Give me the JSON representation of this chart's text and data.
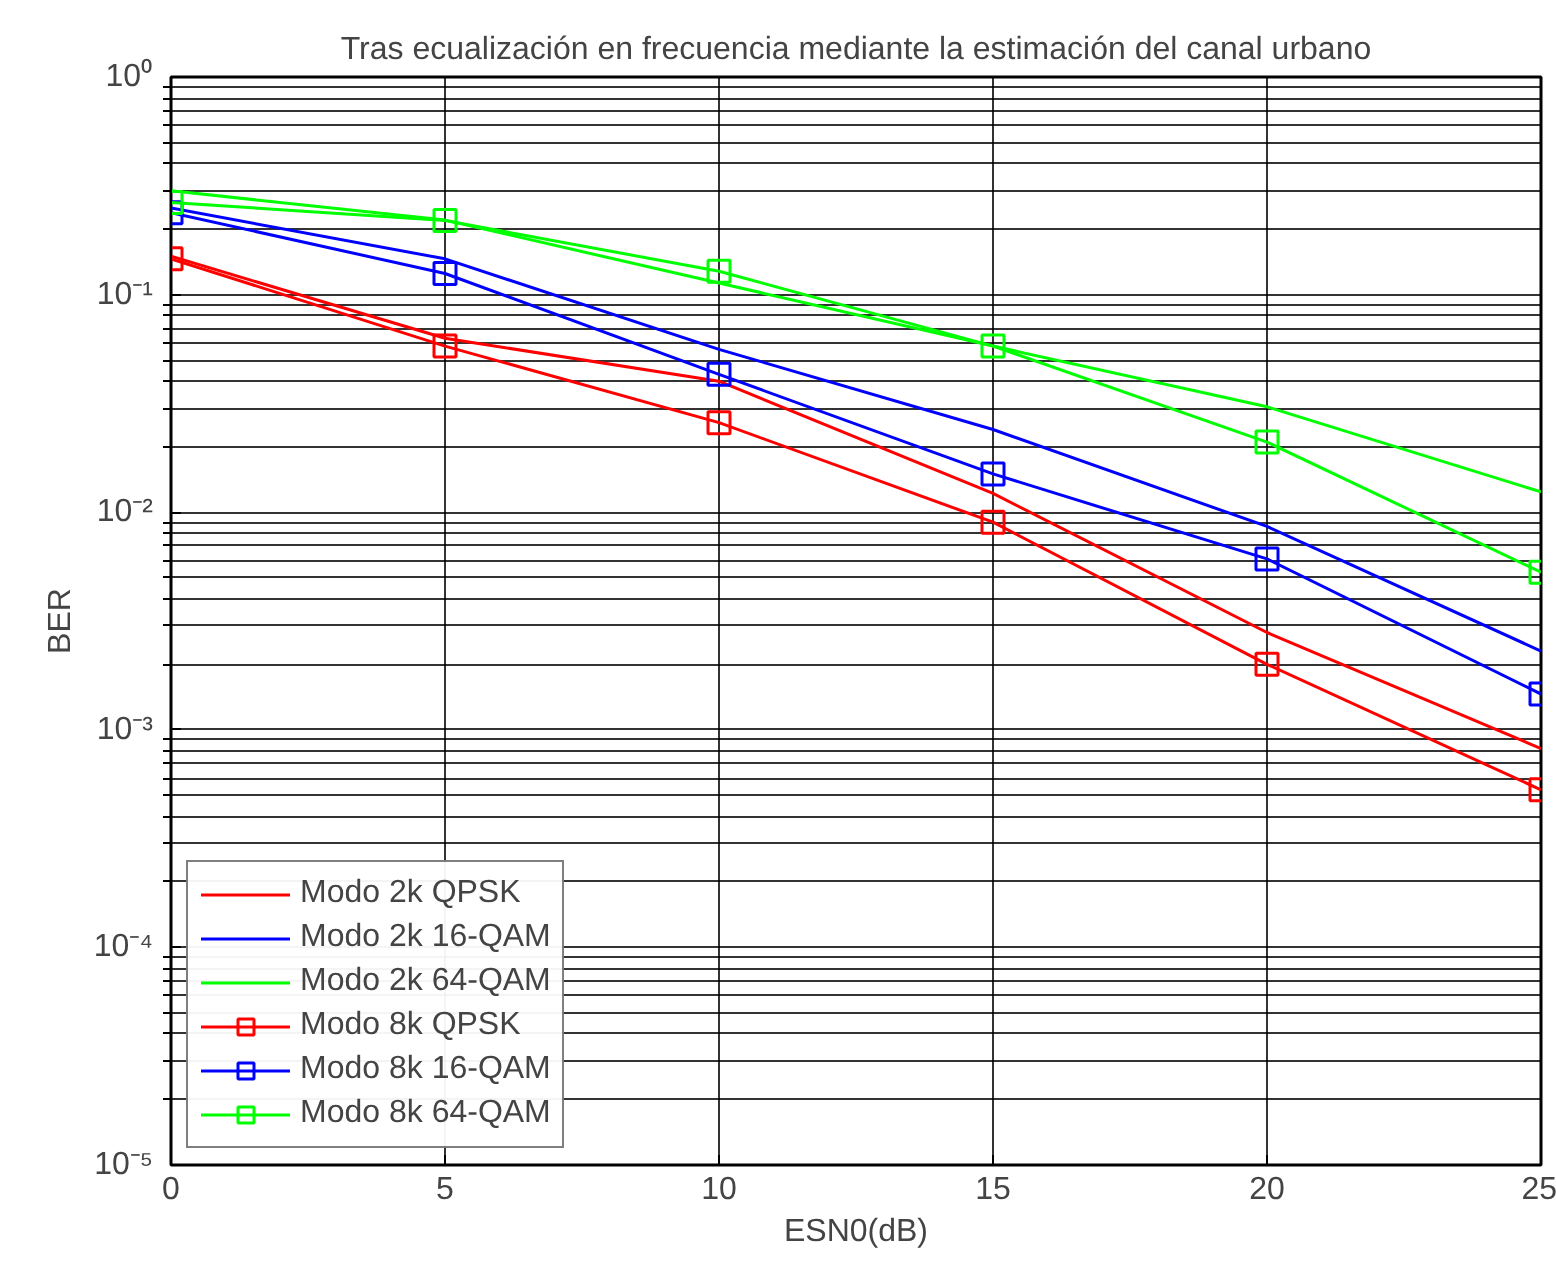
{
  "chart_data": {
    "type": "line",
    "title": "Tras ecualización en frecuencia mediante la estimación del canal urbano",
    "xlabel": "ESN0(dB)",
    "ylabel": "BER",
    "x": [
      0,
      5,
      10,
      15,
      20,
      25
    ],
    "series": [
      {
        "name": "Modo 2k QPSK",
        "color": "#ff0000",
        "marker": "none",
        "values": [
          0.15,
          0.063,
          0.04,
          0.0122,
          0.0028,
          0.00082
        ]
      },
      {
        "name": "Modo 2k 16-QAM",
        "color": "#0000ff",
        "marker": "none",
        "values": [
          0.25,
          0.146,
          0.056,
          0.024,
          0.0086,
          0.0023
        ]
      },
      {
        "name": "Modo 2k 64-QAM",
        "color": "#00ff00",
        "marker": "none",
        "values": [
          0.3,
          0.22,
          0.113,
          0.058,
          0.0305,
          0.0124
        ]
      },
      {
        "name": "Modo 8k QPSK",
        "color": "#ff0000",
        "marker": "square",
        "values": [
          0.146,
          0.058,
          0.0258,
          0.009,
          0.002,
          0.00053
        ]
      },
      {
        "name": "Modo 8k 16-QAM",
        "color": "#0000ff",
        "marker": "square",
        "values": [
          0.238,
          0.125,
          0.043,
          0.015,
          0.0061,
          0.00146
        ]
      },
      {
        "name": "Modo 8k 64-QAM",
        "color": "#00ff00",
        "marker": "square",
        "values": [
          0.265,
          0.219,
          0.128,
          0.058,
          0.021,
          0.0053
        ]
      }
    ],
    "log": "y",
    "xlim": [
      0,
      25
    ],
    "ylim": [
      1e-05,
      1
    ],
    "xticks": [
      0,
      5,
      10,
      15,
      20,
      25
    ],
    "yticks": [
      {
        "value": 1e-05,
        "label": "10⁻⁵"
      },
      {
        "value": 0.0001,
        "label": "10⁻⁴"
      },
      {
        "value": 0.001,
        "label": "10⁻³"
      },
      {
        "value": 0.01,
        "label": "10⁻²"
      },
      {
        "value": 0.1,
        "label": "10⁻¹"
      },
      {
        "value": 1,
        "label": "10⁰"
      }
    ],
    "grid": true,
    "legend": "bottom left",
    "line_style": "solid"
  }
}
